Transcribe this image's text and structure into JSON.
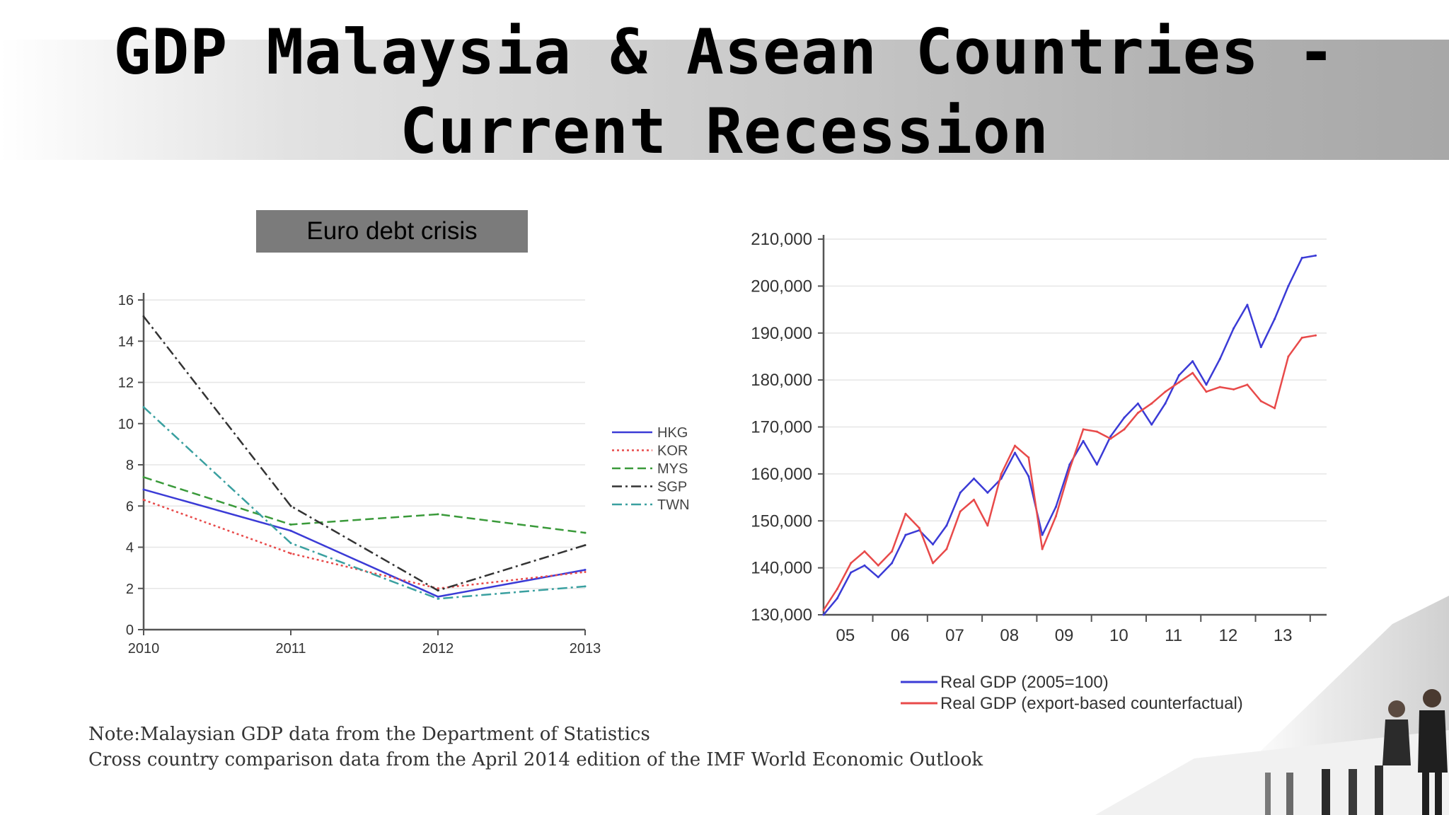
{
  "slide": {
    "title": "GDP Malaysia & Asean Countries  -\nCurrent Recession",
    "banner": "Euro debt crisis",
    "note_line1": "Note:Malaysian GDP data from the Department of Statistics",
    "note_line2": "Cross country comparison data from the April 2014 edition of the IMF World Economic Outlook"
  },
  "colors": {
    "HKG": "#3b3bd6",
    "KOR": "#e84a4a",
    "MYS": "#3a9a3a",
    "SGP": "#333333",
    "TWN": "#3aa0a0",
    "real_gdp": "#3b3bd6",
    "counterfactual": "#e84a4a"
  },
  "chart_data": [
    {
      "type": "line",
      "x": [
        "2010",
        "2011",
        "2012",
        "2013"
      ],
      "ylim": [
        0,
        16
      ],
      "yticks": [
        0,
        2,
        4,
        6,
        8,
        10,
        12,
        14,
        16
      ],
      "grid": true,
      "legend_position": "right",
      "series": [
        {
          "name": "HKG",
          "values": [
            6.8,
            4.8,
            1.6,
            2.9
          ],
          "style": "solid"
        },
        {
          "name": "KOR",
          "values": [
            6.3,
            3.7,
            2.0,
            2.8
          ],
          "style": "dotted"
        },
        {
          "name": "MYS",
          "values": [
            7.4,
            5.1,
            5.6,
            4.7
          ],
          "style": "dashed"
        },
        {
          "name": "SGP",
          "values": [
            15.2,
            6.0,
            1.9,
            4.1
          ],
          "style": "dashdot"
        },
        {
          "name": "TWN",
          "values": [
            10.8,
            4.2,
            1.5,
            2.1
          ],
          "style": "dashdot"
        }
      ]
    },
    {
      "type": "line",
      "xlim": [
        2004.6,
        2013.8
      ],
      "xticks": [
        2005,
        2006,
        2007,
        2008,
        2009,
        2010,
        2011,
        2012,
        2013
      ],
      "xticklabels": [
        "05",
        "06",
        "07",
        "08",
        "09",
        "10",
        "11",
        "12",
        "13"
      ],
      "ylim": [
        130000,
        210000
      ],
      "yticks": [
        130000,
        140000,
        150000,
        160000,
        170000,
        180000,
        190000,
        200000,
        210000
      ],
      "yticklabels": [
        "130,000",
        "140,000",
        "150,000",
        "160,000",
        "170,000",
        "180,000",
        "190,000",
        "200,000",
        "210,000"
      ],
      "grid": true,
      "legend_position": "bottom",
      "series": [
        {
          "name": "Real GDP (2005=100)",
          "x": [
            2004.6,
            2004.85,
            2005.1,
            2005.35,
            2005.6,
            2005.85,
            2006.1,
            2006.35,
            2006.6,
            2006.85,
            2007.1,
            2007.35,
            2007.6,
            2007.85,
            2008.1,
            2008.35,
            2008.6,
            2008.85,
            2009.1,
            2009.35,
            2009.6,
            2009.85,
            2010.1,
            2010.35,
            2010.6,
            2010.85,
            2011.1,
            2011.35,
            2011.6,
            2011.85,
            2012.1,
            2012.35,
            2012.6,
            2012.85,
            2013.1,
            2013.35,
            2013.6
          ],
          "values": [
            130000,
            133500,
            139000,
            140500,
            138000,
            141000,
            147000,
            148000,
            145000,
            149000,
            156000,
            159000,
            156000,
            159000,
            164500,
            159500,
            147000,
            153000,
            162000,
            167000,
            162000,
            168000,
            172000,
            175000,
            170500,
            175000,
            181000,
            184000,
            179000,
            184500,
            191000,
            196000,
            187000,
            193000,
            200000,
            206000,
            206500
          ]
        },
        {
          "name": "Real GDP (export-based counterfactual)",
          "x": [
            2004.6,
            2004.85,
            2005.1,
            2005.35,
            2005.6,
            2005.85,
            2006.1,
            2006.35,
            2006.6,
            2006.85,
            2007.1,
            2007.35,
            2007.6,
            2007.85,
            2008.1,
            2008.35,
            2008.6,
            2008.85,
            2009.1,
            2009.35,
            2009.6,
            2009.85,
            2010.1,
            2010.35,
            2010.6,
            2010.85,
            2011.1,
            2011.35,
            2011.6,
            2011.85,
            2012.1,
            2012.35,
            2012.6,
            2012.85,
            2013.1,
            2013.35,
            2013.6
          ],
          "values": [
            131000,
            135500,
            141000,
            143500,
            140500,
            143500,
            151500,
            148500,
            141000,
            144000,
            152000,
            154500,
            149000,
            160000,
            166000,
            163500,
            144000,
            151000,
            161000,
            169500,
            169000,
            167500,
            169500,
            173000,
            175000,
            177500,
            179500,
            181500,
            177500,
            178500,
            178000,
            179000,
            175500,
            174000,
            185000,
            189000,
            189500
          ]
        }
      ]
    }
  ]
}
